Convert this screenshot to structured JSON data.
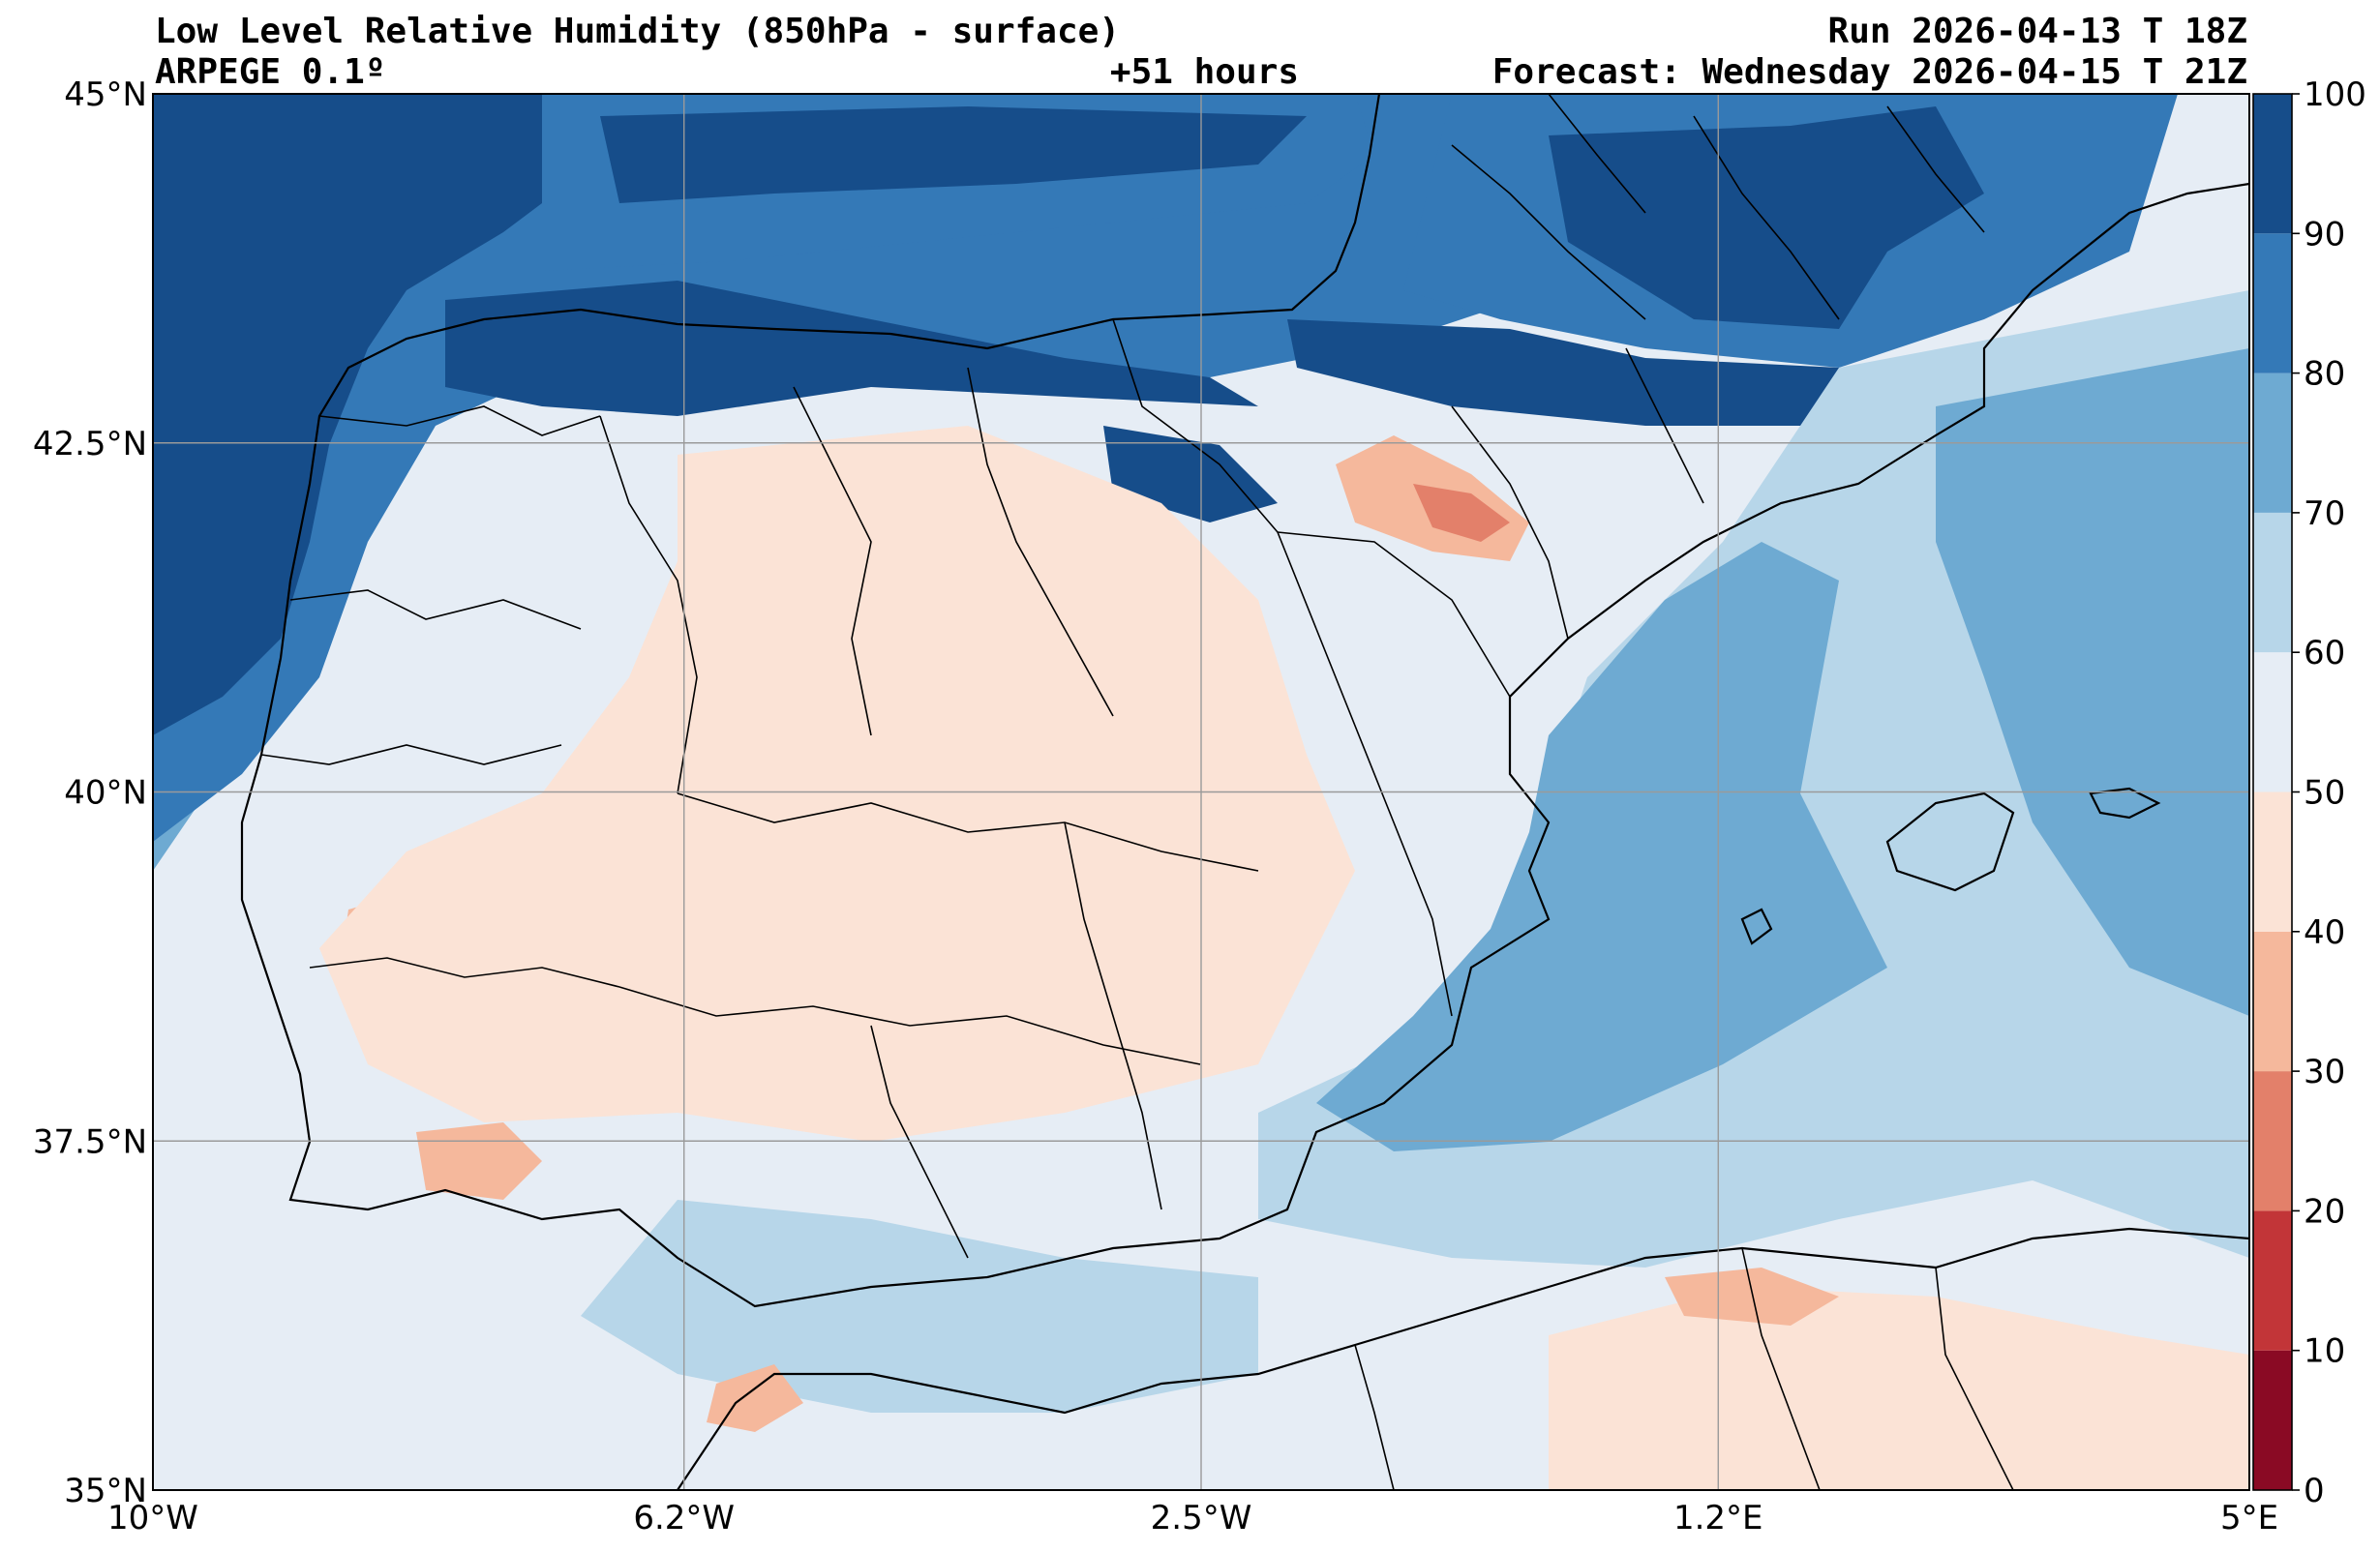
{
  "header": {
    "title": "Low Level Relative Humidity (850hPa - surface)",
    "model": "ARPEGE 0.1º",
    "lead": "+51 hours",
    "run": "Run 2026-04-13 T 18Z",
    "forecast": "Forecast: Wednesday 2026-04-15 T 21Z"
  },
  "map": {
    "lon_range": [
      -10,
      5
    ],
    "lat_range": [
      35,
      45
    ],
    "gridlines": true,
    "lon_ticks": [
      {
        "value": -10,
        "label": "10°W"
      },
      {
        "value": -6.2,
        "label": "6.2°W"
      },
      {
        "value": -2.5,
        "label": "2.5°W"
      },
      {
        "value": 1.2,
        "label": "1.2°E"
      },
      {
        "value": 5,
        "label": "5°E"
      }
    ],
    "lat_ticks": [
      {
        "value": 45,
        "label": "45°N"
      },
      {
        "value": 42.5,
        "label": "42.5°N"
      },
      {
        "value": 40,
        "label": "40°N"
      },
      {
        "value": 37.5,
        "label": "37.5°N"
      },
      {
        "value": 35,
        "label": "35°N"
      }
    ]
  },
  "colorbar": {
    "levels": [
      0,
      10,
      20,
      30,
      40,
      50,
      60,
      70,
      80,
      90,
      100
    ],
    "colors": [
      "#8a0a24",
      "#c23538",
      "#e3806a",
      "#f5b89c",
      "#fbe3d6",
      "#e6edf5",
      "#b7d6e9",
      "#6eaad2",
      "#3479b7",
      "#164d8a"
    ],
    "labels": [
      "0",
      "10",
      "20",
      "30",
      "40",
      "50",
      "60",
      "70",
      "80",
      "90",
      "100"
    ]
  }
}
